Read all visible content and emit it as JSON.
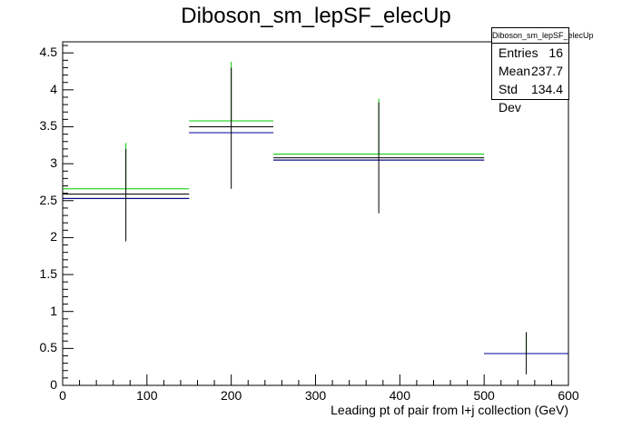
{
  "chart_data": {
    "type": "histogram",
    "title": "Diboson_sm_lepSF_elecUp",
    "xlabel": "Leading pt of pair from l+j collection (GeV)",
    "ylabel": "",
    "xlim": [
      0,
      600
    ],
    "ylim": [
      0,
      4.65
    ],
    "x_ticks": [
      0,
      100,
      200,
      300,
      400,
      500,
      600
    ],
    "y_ticks": [
      0,
      0.5,
      1,
      1.5,
      2,
      2.5,
      3,
      3.5,
      4,
      4.5
    ],
    "y_tick_labels": [
      "0",
      "0.5",
      "1",
      "1.5",
      "2",
      "2.5",
      "3",
      "3.5",
      "4",
      "4.5"
    ],
    "bins": [
      {
        "low": 0,
        "high": 150,
        "center": 75
      },
      {
        "low": 150,
        "high": 250,
        "center": 200
      },
      {
        "low": 250,
        "high": 500,
        "center": 375
      },
      {
        "low": 500,
        "high": 600,
        "center": 550
      }
    ],
    "series": [
      {
        "color": "#00cc00",
        "values": [
          2.66,
          3.58,
          3.13,
          0.43
        ],
        "err_up": [
          3.28,
          4.38,
          3.88,
          0.72
        ]
      },
      {
        "color": "#000000",
        "values": [
          2.59,
          3.5,
          3.08,
          0.43
        ],
        "err_low": [
          1.95,
          2.66,
          2.33,
          0.15
        ],
        "err_up": [
          3.2,
          4.3,
          3.83,
          0.72
        ]
      },
      {
        "color": "#000000",
        "values": [
          2.53,
          3.42,
          3.05,
          0.43
        ]
      },
      {
        "color": "#000099",
        "values": [
          2.53,
          3.42,
          3.05,
          0.43
        ]
      }
    ],
    "stats": {
      "name": "Diboson_sm_lepSF_elecUp",
      "entries_label": "Entries",
      "entries": "16",
      "mean_label": "Mean",
      "mean": "237.7",
      "stddev_label": "Std Dev",
      "stddev": "134.4"
    }
  }
}
